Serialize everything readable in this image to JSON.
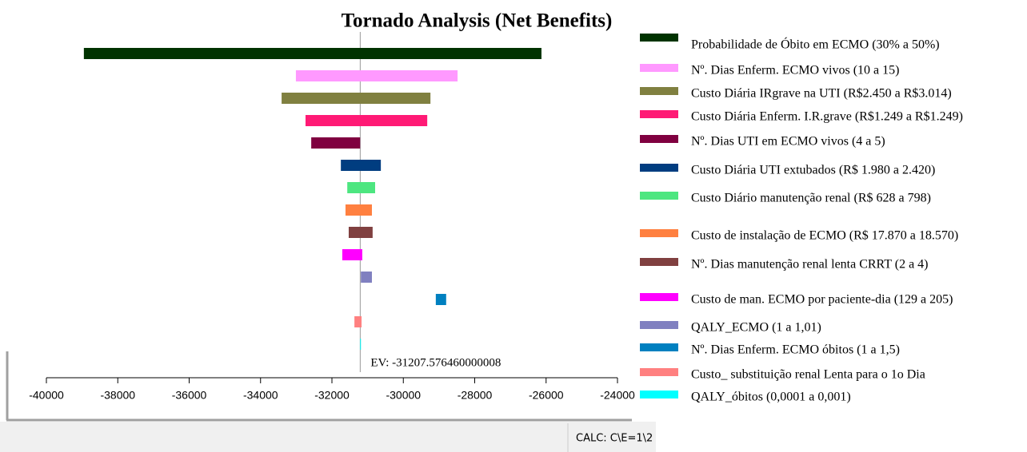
{
  "chart_data": {
    "type": "tornado",
    "title": "Tornado Analysis (Net Benefits)",
    "categories": [
      "Probabilidade de Óbito em ECMO (30% a 50%)",
      "Nº. Dias Enferm. ECMO vivos (10 a 15)",
      "Custo Diária IRgrave na UTI (R$2.450 a R$3.014)",
      "Custo Diária Enferm. I.R.grave (R$1.249 a R$1.249)",
      "Nº. Dias UTI em ECMO vivos (4 a 5)",
      "Custo Diária UTI extubados (R$ 1.980 a 2.420)",
      "Custo Diário manutenção renal (R$ 628 a 798)",
      "Custo de instalação de ECMO (R$ 17.870 a 18.570)",
      "Nº. Dias manutenção renal lenta CRRT (2 a 4)",
      "Custo de man. ECMO por paciente-dia (129 a 205)",
      "QALY_ECMO (1 a 1,01)",
      "Nº. Dias Enferm. ECMO óbitos (1 a 1,5)",
      "Custo_ substituição renal Lenta para o 1o Dia",
      "QALY_óbitos (0,0001 a 0,001)"
    ],
    "low": [
      -38950,
      -33010,
      -33410,
      -32740,
      -32580,
      -31750,
      -31570,
      -31620,
      -31530,
      -31710,
      -31190,
      -29090,
      -31370,
      -31210
    ],
    "high": [
      -26130,
      -28480,
      -29240,
      -29330,
      -31210,
      -30630,
      -30790,
      -30880,
      -30860,
      -31150,
      -30880,
      -28800,
      -31170,
      -31205
    ],
    "colors": [
      "#003300",
      "#ff99ff",
      "#808040",
      "#ff1a75",
      "#800040",
      "#003d80",
      "#4de680",
      "#ff8040",
      "#804040",
      "#ff00ff",
      "#8080c0",
      "#0080c0",
      "#ff8080",
      "#00ffff"
    ],
    "ev": -31207.576460000008,
    "ev_label": "EV: -31207.576460000008",
    "xlim": [
      -40000,
      -24000
    ],
    "xticks": [
      -40000,
      -38000,
      -36000,
      -34000,
      -32000,
      -30000,
      -28000,
      -26000,
      -24000
    ]
  },
  "status_bar": "CALC: C\\E=1\\2"
}
